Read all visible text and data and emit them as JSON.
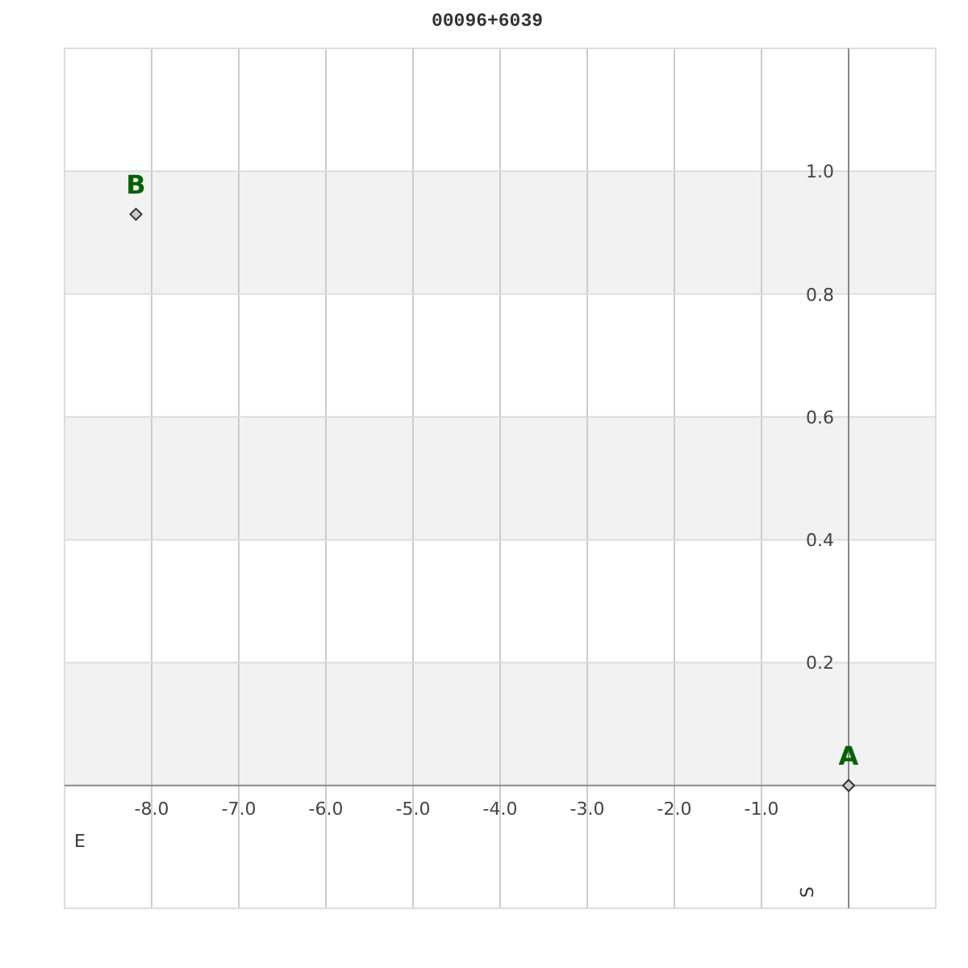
{
  "chart_data": {
    "type": "scatter",
    "title": "00096+6039",
    "xlabel": "E",
    "ylabel": "S",
    "x": [
      0,
      -8.18
    ],
    "series": [
      {
        "color": "#333333",
        "values": [
          0,
          0.93
        ]
      }
    ],
    "xlim": [
      -9,
      1
    ],
    "ylim": [
      -0.2,
      1.2
    ],
    "xticks": [
      {
        "value": -8,
        "label": "-8.0"
      },
      {
        "value": -7,
        "label": "-7.0"
      },
      {
        "value": -6,
        "label": "-6.0"
      },
      {
        "value": -5,
        "label": "-5.0"
      },
      {
        "value": -4,
        "label": "-4.0"
      },
      {
        "value": -3,
        "label": "-3.0"
      },
      {
        "value": -2,
        "label": "-2.0"
      },
      {
        "value": -1,
        "label": "-1.0"
      }
    ],
    "yticks": [
      0.2,
      0.4,
      0.6,
      0.8,
      {
        "value": 1,
        "label": "1.0"
      }
    ],
    "grid": true,
    "marker": "diamond",
    "bands": [
      {
        "axis": "y",
        "from": 0,
        "to": 0.2,
        "color": "#f2f2f2"
      },
      {
        "axis": "y",
        "from": 0.4,
        "to": 0.6,
        "color": "#f2f2f2"
      },
      {
        "axis": "y",
        "from": 0.8,
        "to": 1,
        "color": "#f2f2f2"
      }
    ],
    "annotations": [
      {
        "text": "A",
        "x": 0,
        "y": 0
      },
      {
        "text": "B",
        "x": -8.18,
        "y": 0.93
      }
    ]
  }
}
